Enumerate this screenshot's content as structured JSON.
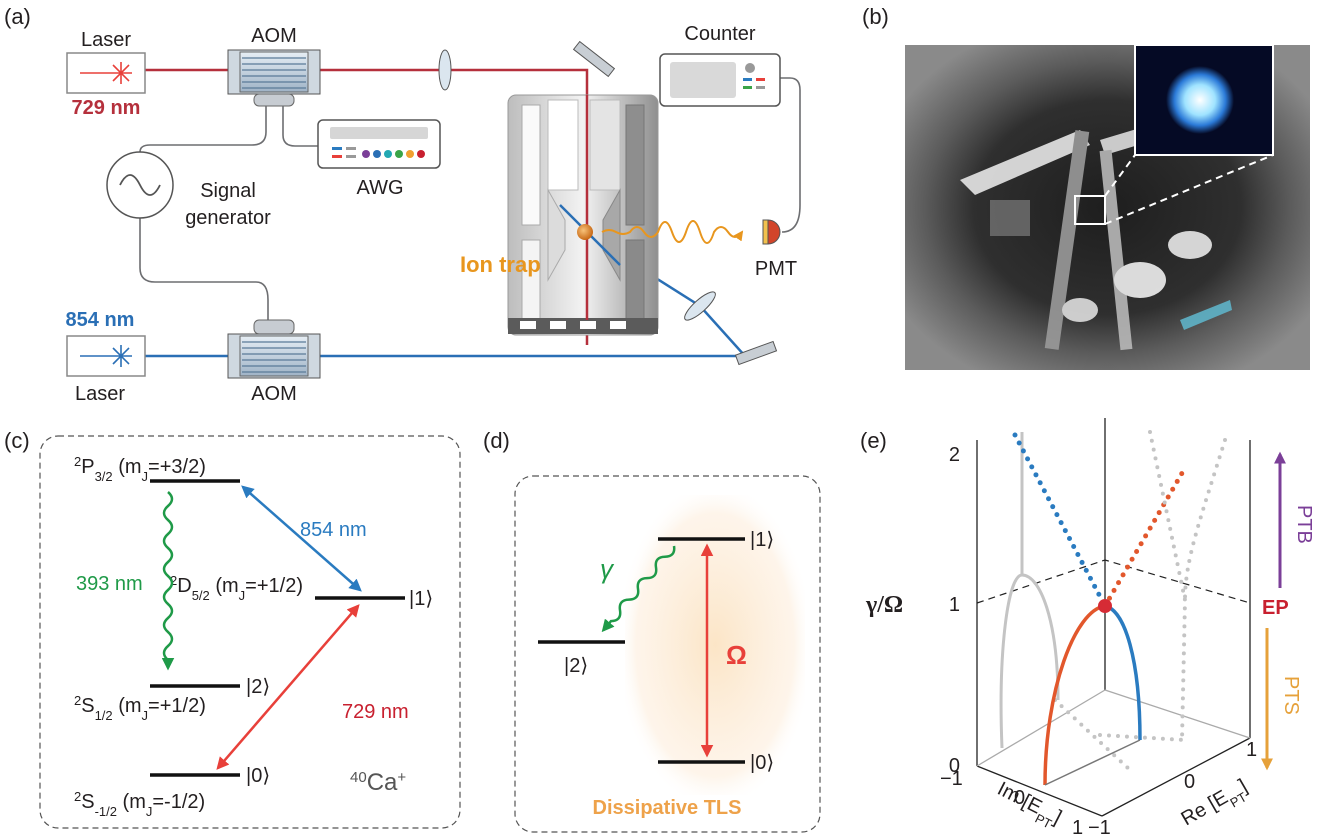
{
  "panel_a": {
    "label": "(a)",
    "laser_top": "Laser",
    "wavelength_top": "729 nm",
    "aom_top": "AOM",
    "aom_bottom": "AOM",
    "counter": "Counter",
    "awg": "AWG",
    "signal_generator": [
      "Signal",
      "generator"
    ],
    "ion_trap": "Ion trap",
    "pmt": "PMT",
    "wavelength_bottom": "854 nm",
    "laser_bottom": "Laser"
  },
  "panel_b": {
    "label": "(b)"
  },
  "panel_c": {
    "label": "(c)",
    "levels": [
      {
        "pre": "2",
        "term": "P",
        "sub": "3/2",
        "mid": " (m",
        "msub": "J",
        "post": "=+3/2)"
      },
      {
        "pre": "2",
        "term": "D",
        "sub": "5/2",
        "mid": " (m",
        "msub": "J",
        "post": "=+1/2)"
      },
      {
        "pre": "2",
        "term": "S",
        "sub": "1/2",
        "mid": " (m",
        "msub": "J",
        "post": "=+1/2)"
      },
      {
        "pre": "2",
        "term": "S",
        "sub": "-1/2",
        "mid": " (m",
        "msub": "J",
        "post": "=-1/2)"
      }
    ],
    "kets": [
      "|1⟩",
      "|2⟩",
      "|0⟩"
    ],
    "transitions": [
      "854 nm",
      "393 nm",
      "729 nm"
    ],
    "ion": {
      "mass": "40",
      "element": "Ca",
      "charge": "+"
    }
  },
  "panel_d": {
    "label": "(d)",
    "gamma": "γ",
    "omega": "Ω",
    "kets": [
      "|1⟩",
      "|2⟩",
      "|0⟩"
    ],
    "caption": "Dissipative TLS"
  },
  "panel_e": {
    "label": "(e)",
    "z_axis": "γ/Ω",
    "z_ticks": [
      "2",
      "1",
      "0"
    ],
    "im_ticks": [
      "−1",
      "0",
      "1"
    ],
    "re_ticks": [
      "−1",
      "0",
      "1"
    ],
    "im_axis": {
      "text": "Im [E",
      "sub": "PT",
      "end": "]"
    },
    "re_axis": {
      "text": "Re [E",
      "sub": "PT",
      "end": "]"
    },
    "ep": "EP",
    "ptb": "PTB",
    "pts": "PTS"
  }
}
